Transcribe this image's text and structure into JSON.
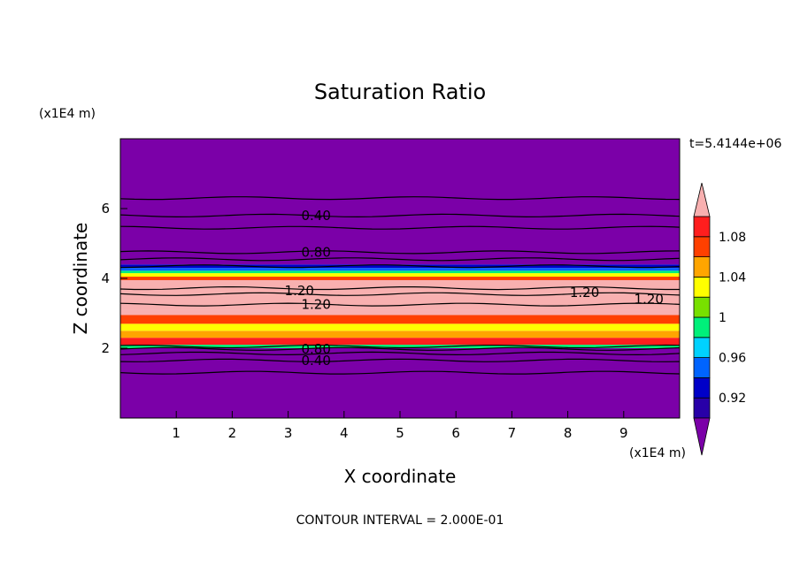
{
  "chart_data": {
    "type": "heatmap",
    "title": "Saturation Ratio",
    "xlabel": "X coordinate",
    "ylabel": "Z coordinate",
    "x_units": "(x1E4 m)",
    "y_units": "(x1E4 m)",
    "xlim": [
      0,
      10
    ],
    "ylim": [
      0,
      8
    ],
    "x_ticks": [
      "1",
      "2",
      "3",
      "4",
      "5",
      "6",
      "7",
      "8",
      "9"
    ],
    "y_ticks": [
      "2",
      "4",
      "6"
    ],
    "time_label": "t=5.4144e+06",
    "footer": "CONTOUR INTERVAL = 2.000E-01",
    "colorbar": {
      "levels": [
        0.9,
        0.92,
        0.94,
        0.96,
        0.98,
        1.0,
        1.02,
        1.04,
        1.06,
        1.08,
        1.1
      ],
      "colors": [
        "#7b00a8",
        "#2800a8",
        "#0000c8",
        "#0064ff",
        "#00d2ff",
        "#00f07a",
        "#78e000",
        "#ffff00",
        "#ffa500",
        "#ff4000",
        "#ff1e1e",
        "#f8b0b0"
      ],
      "tick_labels": [
        "0.92",
        "0.96",
        "1",
        "1.04",
        "1.08"
      ]
    },
    "bands": [
      {
        "z0": 0.0,
        "z1": 2.0,
        "value": 0.85
      },
      {
        "z0": 2.0,
        "z1": 2.1,
        "value": 0.99
      },
      {
        "z0": 2.1,
        "z1": 2.3,
        "value": 1.09
      },
      {
        "z0": 2.3,
        "z1": 2.5,
        "value": 1.05
      },
      {
        "z0": 2.5,
        "z1": 2.7,
        "value": 1.03
      },
      {
        "z0": 2.7,
        "z1": 2.95,
        "value": 1.07
      },
      {
        "z0": 2.95,
        "z1": 3.1,
        "value": 1.1
      },
      {
        "z0": 3.1,
        "z1": 3.95,
        "value": 1.2
      },
      {
        "z0": 3.95,
        "z1": 4.05,
        "value": 1.07
      },
      {
        "z0": 4.05,
        "z1": 4.15,
        "value": 1.03
      },
      {
        "z0": 4.15,
        "z1": 4.22,
        "value": 0.99
      },
      {
        "z0": 4.22,
        "z1": 4.3,
        "value": 0.95
      },
      {
        "z0": 4.3,
        "z1": 4.4,
        "value": 0.93
      },
      {
        "z0": 4.4,
        "z1": 8.0,
        "value": 0.6
      }
    ],
    "contours": [
      {
        "z": 1.3
      },
      {
        "z": 1.65
      },
      {
        "z": 1.85
      },
      {
        "z": 1.98
      },
      {
        "z": 2.05
      },
      {
        "z": 3.25
      },
      {
        "z": 3.55
      },
      {
        "z": 3.72
      },
      {
        "z": 4.35
      },
      {
        "z": 4.55
      },
      {
        "z": 4.75
      },
      {
        "z": 5.45
      },
      {
        "z": 5.8
      },
      {
        "z": 6.3
      }
    ],
    "contour_labels": [
      {
        "text": "0.40",
        "x": 3.5,
        "z": 5.8
      },
      {
        "text": "0.80",
        "x": 3.5,
        "z": 4.75
      },
      {
        "text": "1.20",
        "x": 3.2,
        "z": 3.65
      },
      {
        "text": "1.20",
        "x": 3.5,
        "z": 3.25
      },
      {
        "text": "1.20",
        "x": 8.3,
        "z": 3.6
      },
      {
        "text": "1.20",
        "x": 9.45,
        "z": 3.4
      },
      {
        "text": "0.80",
        "x": 3.5,
        "z": 1.97
      },
      {
        "text": "0.40",
        "x": 3.5,
        "z": 1.65
      }
    ]
  }
}
